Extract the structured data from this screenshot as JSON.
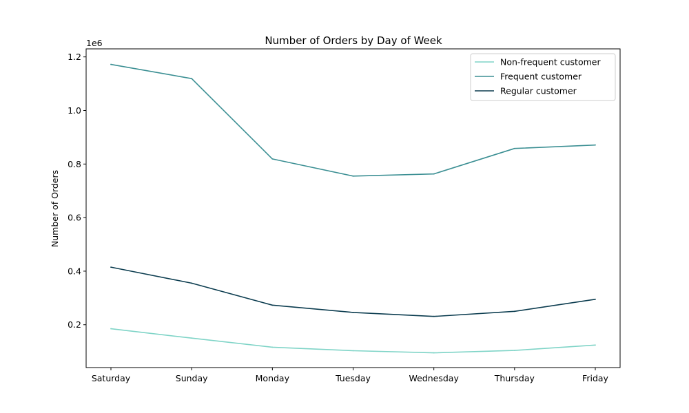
{
  "chart_data": {
    "type": "line",
    "title": "Number of Orders by Day of Week",
    "xlabel": "",
    "ylabel": "Number of Orders",
    "y_offset_label": "1e6",
    "categories": [
      "Saturday",
      "Sunday",
      "Monday",
      "Tuesday",
      "Wednesday",
      "Thursday",
      "Friday"
    ],
    "yticks": [
      0.2,
      0.4,
      0.6,
      0.8,
      1.0,
      1.2
    ],
    "ytick_labels": [
      "0.2",
      "0.4",
      "0.6",
      "0.8",
      "1.0",
      "1.2"
    ],
    "ylim": [
      0.04,
      1.23
    ],
    "grid": false,
    "legend_position": "top-right",
    "series": [
      {
        "name": "Non-frequent customer",
        "color": "#7fd4c7",
        "values": [
          0.185,
          0.15,
          0.116,
          0.103,
          0.095,
          0.104,
          0.124
        ]
      },
      {
        "name": "Frequent customer",
        "color": "#3b8f93",
        "values": [
          1.172,
          1.119,
          0.819,
          0.755,
          0.763,
          0.858,
          0.871
        ]
      },
      {
        "name": "Regular customer",
        "color": "#0b3c4f",
        "values": [
          0.415,
          0.355,
          0.273,
          0.246,
          0.231,
          0.25,
          0.295
        ]
      }
    ]
  }
}
